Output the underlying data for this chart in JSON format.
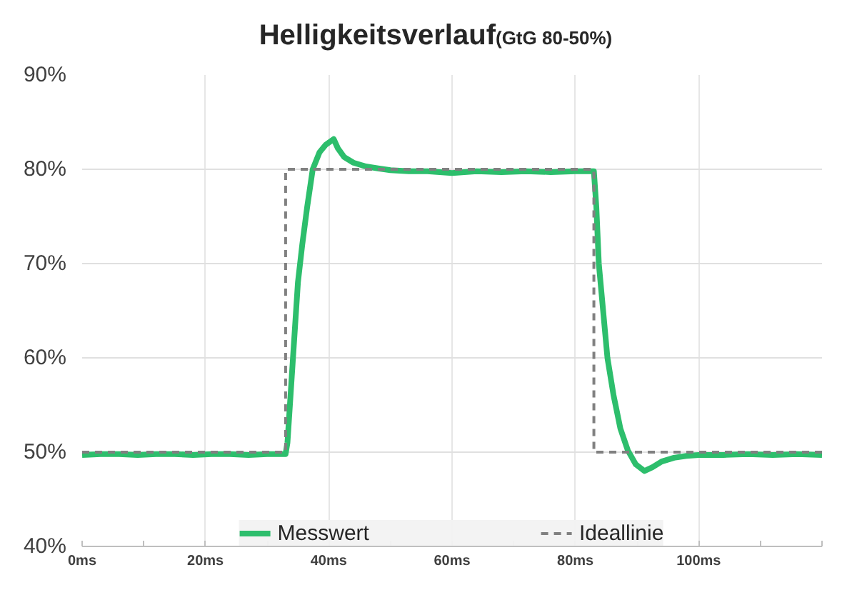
{
  "chart_data": {
    "type": "line",
    "title": "Helligkeitsverlauf",
    "subtitle": "(GtG 80-50%)",
    "series": [
      {
        "name": "Messwert",
        "color": "#2dbe6c",
        "line_style": "solid",
        "x": [
          0,
          3,
          6,
          9,
          12,
          15,
          18,
          21,
          24,
          27,
          30,
          33,
          33.3,
          33.6,
          34,
          34.5,
          35,
          35.7,
          36.5,
          37.4,
          38.5,
          39.5,
          40.8,
          41.5,
          42.5,
          44,
          46,
          48,
          50,
          53,
          56,
          60,
          64,
          68,
          72,
          76,
          80,
          83,
          83.4,
          83.8,
          84.5,
          85.2,
          86.2,
          87.3,
          88.5,
          89.8,
          91.2,
          92.5,
          94,
          96,
          98,
          100,
          104,
          108,
          112,
          116,
          120
        ],
        "values": [
          49.7,
          49.8,
          49.8,
          49.7,
          49.8,
          49.8,
          49.7,
          49.8,
          49.8,
          49.7,
          49.8,
          49.8,
          51,
          54,
          58,
          63,
          68,
          72,
          76,
          80,
          81.8,
          82.6,
          83.2,
          82.2,
          81.3,
          80.7,
          80.3,
          80.1,
          79.9,
          79.8,
          79.8,
          79.6,
          79.8,
          79.7,
          79.8,
          79.7,
          79.8,
          79.8,
          76,
          70,
          65,
          60,
          56,
          52.5,
          50.2,
          48.7,
          48,
          48.4,
          49,
          49.4,
          49.6,
          49.7,
          49.7,
          49.8,
          49.7,
          49.8,
          49.7
        ]
      },
      {
        "name": "Ideallinie",
        "color": "#808080",
        "line_style": "dashed",
        "x": [
          0,
          33,
          33,
          83,
          83,
          120
        ],
        "values": [
          50,
          50,
          80,
          80,
          50,
          50
        ]
      }
    ],
    "xlim": [
      0,
      120
    ],
    "ylim": [
      40,
      90
    ],
    "xticks": [
      {
        "value": 0,
        "label": "0ms"
      },
      {
        "value": 10,
        "label": null
      },
      {
        "value": 20,
        "label": "20ms"
      },
      {
        "value": 30,
        "label": null
      },
      {
        "value": 40,
        "label": "40ms"
      },
      {
        "value": 50,
        "label": null
      },
      {
        "value": 60,
        "label": "60ms"
      },
      {
        "value": 70,
        "label": null
      },
      {
        "value": 80,
        "label": "80ms"
      },
      {
        "value": 90,
        "label": null
      },
      {
        "value": 100,
        "label": "100ms"
      },
      {
        "value": 110,
        "label": null
      },
      {
        "value": 120,
        "label": null
      }
    ],
    "yticks": [
      {
        "value": 40,
        "label": "40%"
      },
      {
        "value": 50,
        "label": "50%"
      },
      {
        "value": 60,
        "label": "60%"
      },
      {
        "value": 70,
        "label": "70%"
      },
      {
        "value": 80,
        "label": "80%"
      },
      {
        "value": 90,
        "label": "90%"
      }
    ],
    "grid": true,
    "legend": "bottom"
  }
}
